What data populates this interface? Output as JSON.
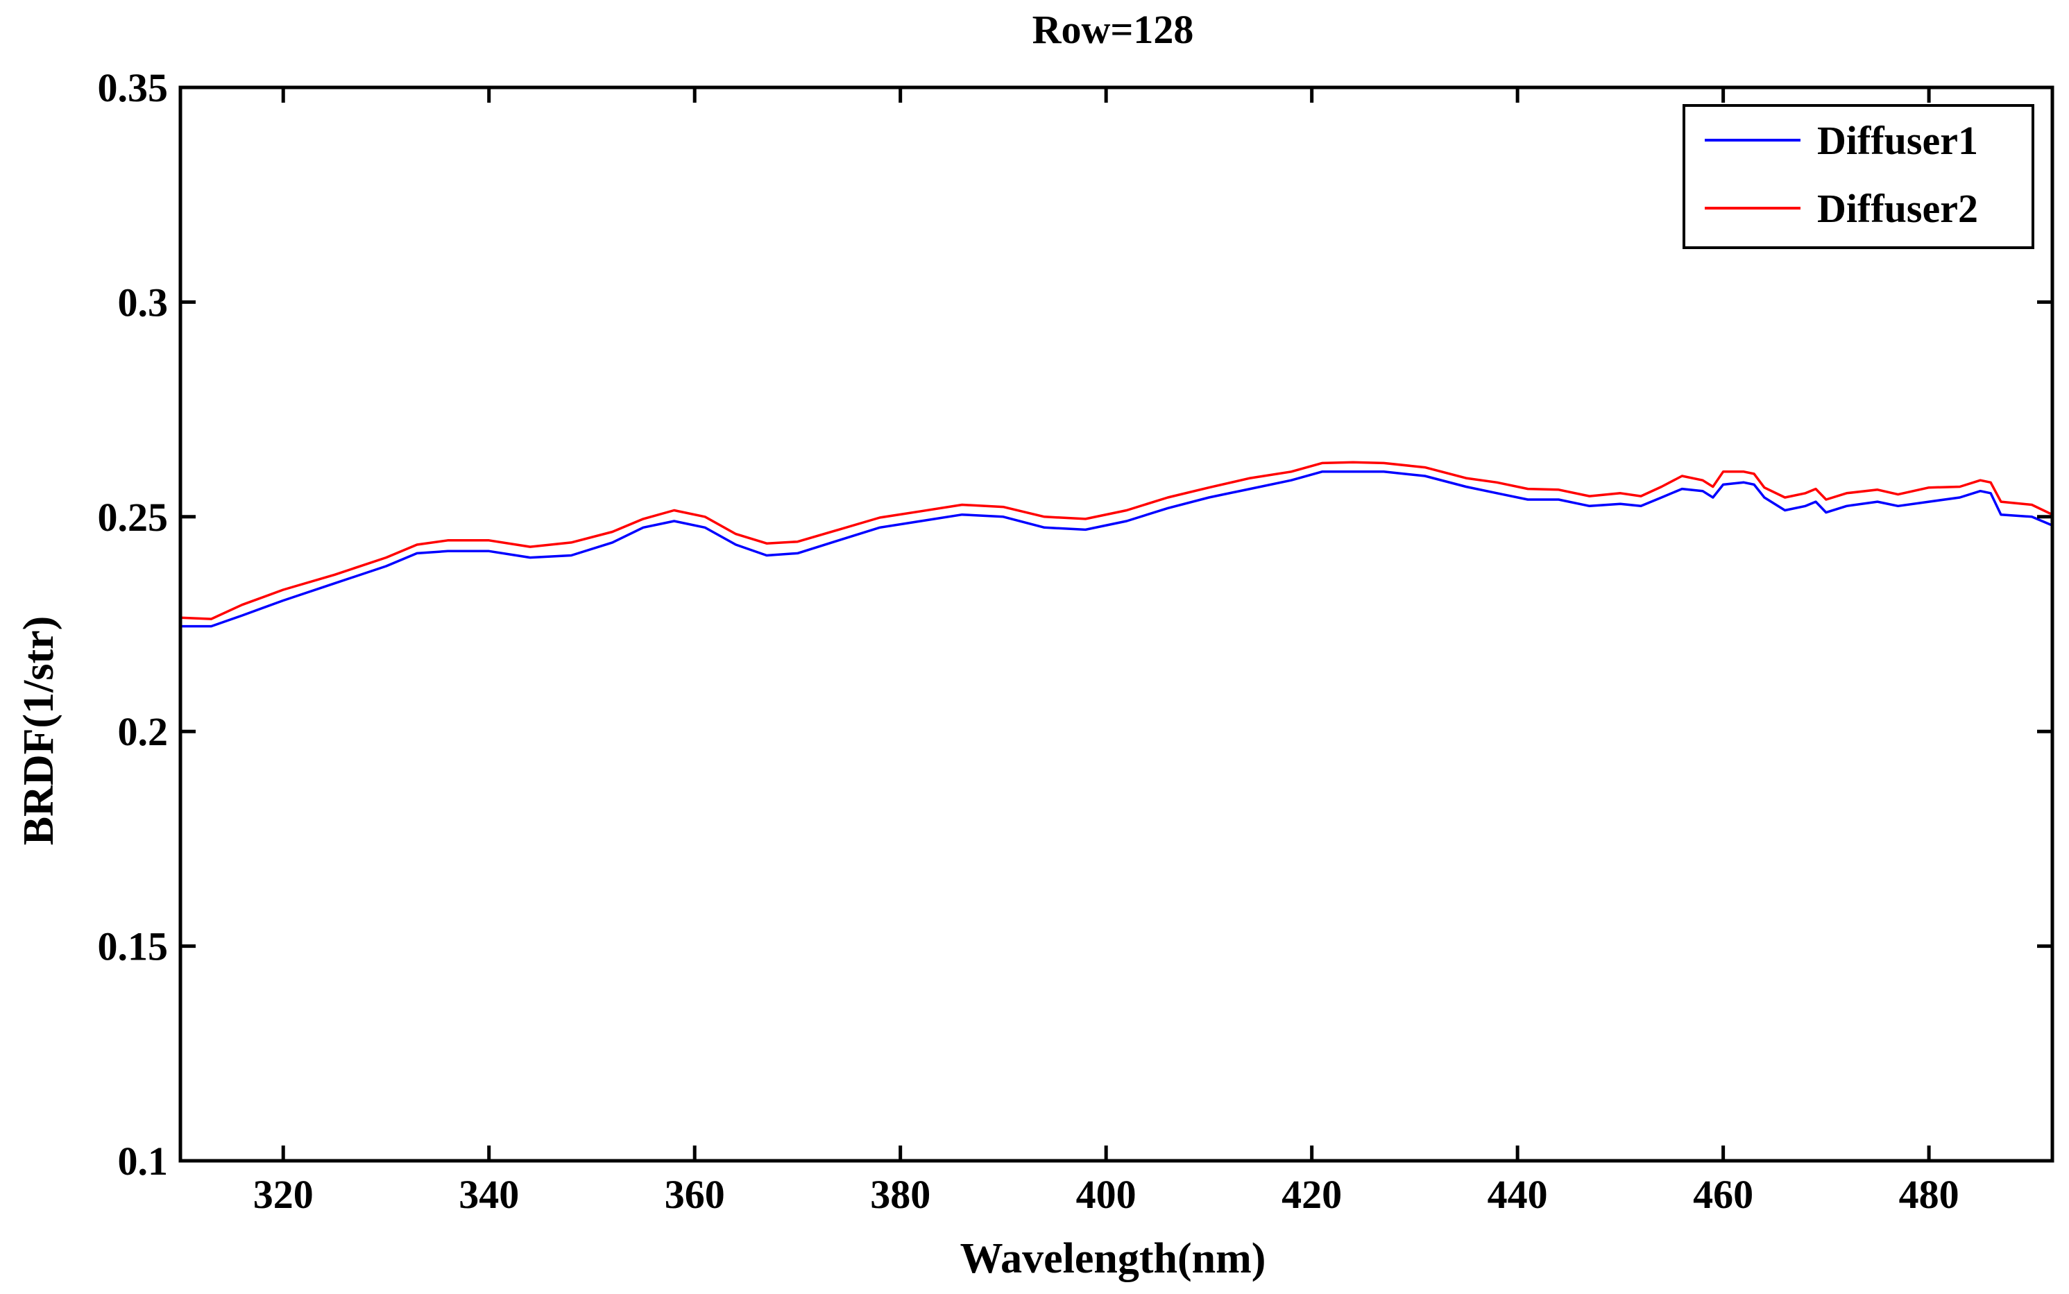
{
  "chart_data": {
    "type": "line",
    "title": "Row=128",
    "xlabel": "Wavelength(nm)",
    "ylabel": "BRDF(1/str)",
    "xlim": [
      310,
      492
    ],
    "ylim": [
      0.1,
      0.35
    ],
    "xticks": [
      320,
      340,
      360,
      380,
      400,
      420,
      440,
      460,
      480
    ],
    "yticks": [
      0.1,
      0.15,
      0.2,
      0.25,
      0.3,
      0.35
    ],
    "ytick_labels": [
      "0.1",
      "0.15",
      "0.2",
      "0.25",
      "0.3",
      "0.35"
    ],
    "grid": false,
    "legend_position": "top-right",
    "series": [
      {
        "name": "Diffuser1",
        "color": "#0000ff",
        "x": [
          310,
          313,
          316,
          320,
          325,
          330,
          333,
          336,
          340,
          344,
          348,
          352,
          355,
          358,
          361,
          364,
          367,
          370,
          374,
          378,
          382,
          386,
          390,
          394,
          398,
          402,
          406,
          410,
          414,
          418,
          421,
          424,
          427,
          431,
          435,
          438,
          441,
          444,
          447,
          450,
          452,
          454,
          456,
          458,
          459,
          460,
          462,
          463,
          464,
          466,
          468,
          469,
          470,
          472,
          475,
          477,
          480,
          483,
          485,
          486,
          487,
          490,
          492
        ],
        "y": [
          0.2245,
          0.2245,
          0.227,
          0.2305,
          0.2345,
          0.2385,
          0.2415,
          0.242,
          0.242,
          0.2405,
          0.241,
          0.244,
          0.2475,
          0.249,
          0.2475,
          0.2435,
          0.241,
          0.2415,
          0.2445,
          0.2475,
          0.249,
          0.2505,
          0.25,
          0.2475,
          0.247,
          0.249,
          0.252,
          0.2545,
          0.2565,
          0.2585,
          0.2605,
          0.2605,
          0.2605,
          0.2595,
          0.257,
          0.2555,
          0.254,
          0.254,
          0.2525,
          0.253,
          0.2525,
          0.2545,
          0.2565,
          0.256,
          0.2545,
          0.2575,
          0.258,
          0.2575,
          0.2545,
          0.2515,
          0.2525,
          0.2535,
          0.251,
          0.2525,
          0.2535,
          0.2525,
          0.2535,
          0.2545,
          0.256,
          0.2555,
          0.2505,
          0.25,
          0.248
        ]
      },
      {
        "name": "Diffuser2",
        "color": "#ff0000",
        "x": [
          310,
          313,
          316,
          320,
          325,
          330,
          333,
          336,
          340,
          344,
          348,
          352,
          355,
          358,
          361,
          364,
          367,
          370,
          374,
          378,
          382,
          386,
          390,
          394,
          398,
          402,
          406,
          410,
          414,
          418,
          421,
          424,
          427,
          431,
          435,
          438,
          441,
          444,
          447,
          450,
          452,
          454,
          456,
          458,
          459,
          460,
          462,
          463,
          464,
          466,
          468,
          469,
          470,
          472,
          475,
          477,
          480,
          483,
          485,
          486,
          487,
          490,
          492
        ],
        "y": [
          0.2265,
          0.2262,
          0.2295,
          0.233,
          0.2365,
          0.2405,
          0.2435,
          0.2445,
          0.2445,
          0.243,
          0.244,
          0.2465,
          0.2495,
          0.2515,
          0.25,
          0.246,
          0.2438,
          0.2442,
          0.247,
          0.2498,
          0.2513,
          0.2528,
          0.2523,
          0.25,
          0.2495,
          0.2515,
          0.2545,
          0.2568,
          0.259,
          0.2605,
          0.2625,
          0.2627,
          0.2625,
          0.2615,
          0.259,
          0.258,
          0.2565,
          0.2563,
          0.2548,
          0.2555,
          0.2548,
          0.257,
          0.2595,
          0.2585,
          0.257,
          0.2605,
          0.2605,
          0.26,
          0.2568,
          0.2545,
          0.2555,
          0.2565,
          0.254,
          0.2555,
          0.2563,
          0.2552,
          0.2568,
          0.257,
          0.2585,
          0.258,
          0.2535,
          0.2528,
          0.2505
        ]
      }
    ]
  }
}
